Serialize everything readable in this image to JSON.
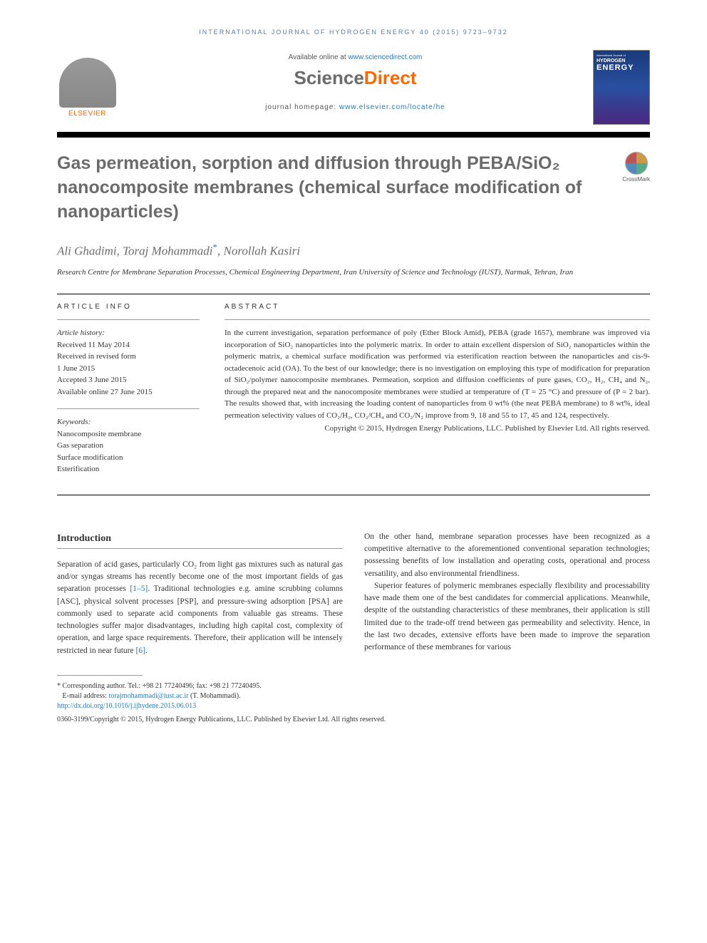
{
  "running_header": "INTERNATIONAL JOURNAL OF HYDROGEN ENERGY 40 (2015) 9723–9732",
  "header": {
    "available_prefix": "Available online at ",
    "available_link": "www.sciencedirect.com",
    "brand_1": "Science",
    "brand_2": "Direct",
    "homepage_prefix": "journal homepage: ",
    "homepage_link": "www.elsevier.com/locate/he",
    "elsevier": "ELSEVIER",
    "cover_top": "International Journal of",
    "cover_hydrogen": "HYDROGEN",
    "cover_energy": "ENERGY"
  },
  "crossmark": "CrossMark",
  "title": "Gas permeation, sorption and diffusion through PEBA/SiO₂ nanocomposite membranes (chemical surface modification of nanoparticles)",
  "authors": {
    "a1": "Ali Ghadimi",
    "a2": "Toraj Mohammadi",
    "a3": "Norollah Kasiri",
    "corr": "*"
  },
  "affiliation": "Research Centre for Membrane Separation Processes, Chemical Engineering Department, Iran University of Science and Technology (IUST), Narmak, Tehran, Iran",
  "info": {
    "label": "ARTICLE INFO",
    "history_head": "Article history:",
    "received": "Received 11 May 2014",
    "revised1": "Received in revised form",
    "revised2": "1 June 2015",
    "accepted": "Accepted 3 June 2015",
    "online": "Available online 27 June 2015",
    "keywords_head": "Keywords:",
    "k1": "Nanocomposite membrane",
    "k2": "Gas separation",
    "k3": "Surface modification",
    "k4": "Esterification"
  },
  "abstract": {
    "label": "ABSTRACT",
    "text": "In the current investigation, separation performance of poly (Ether Block Amid), PEBA (grade 1657), membrane was improved via incorporation of SiO₂ nanoparticles into the polymeric matrix. In order to attain excellent dispersion of SiO₂ nanoparticles within the polymeric matrix, a chemical surface modification was performed via esterification reaction between the nanoparticles and cis-9-octadecenoic acid (OA). To the best of our knowledge; there is no investigation on employing this type of modification for preparation of SiO₂/polymer nanocomposite membranes. Permeation, sorption and diffusion coefficients of pure gases, CO₂, H₂, CH₄ and N₂, through the prepared neat and the nanocomposite membranes were studied at temperature of (T = 25 °C) and pressure of (P = 2 bar). The results showed that, with increasing the loading content of nanoparticles from 0 wt% (the neat PEBA membrane) to 8 wt%, ideal permeation selectivity values of CO₂/H₂, CO₂/CH₄ and CO₂/N₂ improve from 9, 18 and 55 to 17, 45 and 124, respectively.",
    "copyright": "Copyright © 2015, Hydrogen Energy Publications, LLC. Published by Elsevier Ltd. All rights reserved."
  },
  "body": {
    "intro_head": "Introduction",
    "p1a": "Separation of acid gases, particularly CO₂ from light gas mixtures such as natural gas and/or syngas streams has recently become one of the most important fields of gas separation processes ",
    "p1_ref1": "[1–5]",
    "p1b": ". Traditional technologies e.g. amine scrubbing columns [ASC], physical solvent processes [PSP], and pressure-swing adsorption [PSA] are commonly used to separate acid components from valuable gas streams. These technologies suffer major disadvantages, including high capital cost, complexity of operation, and large space requirements. Therefore, their application will be intensely restricted in near future ",
    "p1_ref2": "[6]",
    "p1c": ".",
    "p2": "On the other hand, membrane separation processes have been recognized as a competitive alternative to the aforementioned conventional separation technologies; possessing benefits of low installation and operating costs, operational and process versatility, and also environmental friendliness.",
    "p3": "Superior features of polymeric membranes especially flexibility and processability have made them one of the best candidates for commercial applications. Meanwhile, despite of the outstanding characteristics of these membranes, their application is still limited due to the trade-off trend between gas permeability and selectivity. Hence, in the last two decades, extensive efforts have been made to improve the separation performance of these membranes for various"
  },
  "footnotes": {
    "corr": "* Corresponding author. Tel.: +98 21 77240496; fax: +98 21 77240495.",
    "email_label": "E-mail address: ",
    "email": "torajmohammadi@iust.ac.ir",
    "email_suffix": " (T. Mohammadi).",
    "doi": "http://dx.doi.org/10.1016/j.ijhydene.2015.06.013",
    "issn_copy": "0360-3199/Copyright © 2015, Hydrogen Energy Publications, LLC. Published by Elsevier Ltd. All rights reserved."
  }
}
